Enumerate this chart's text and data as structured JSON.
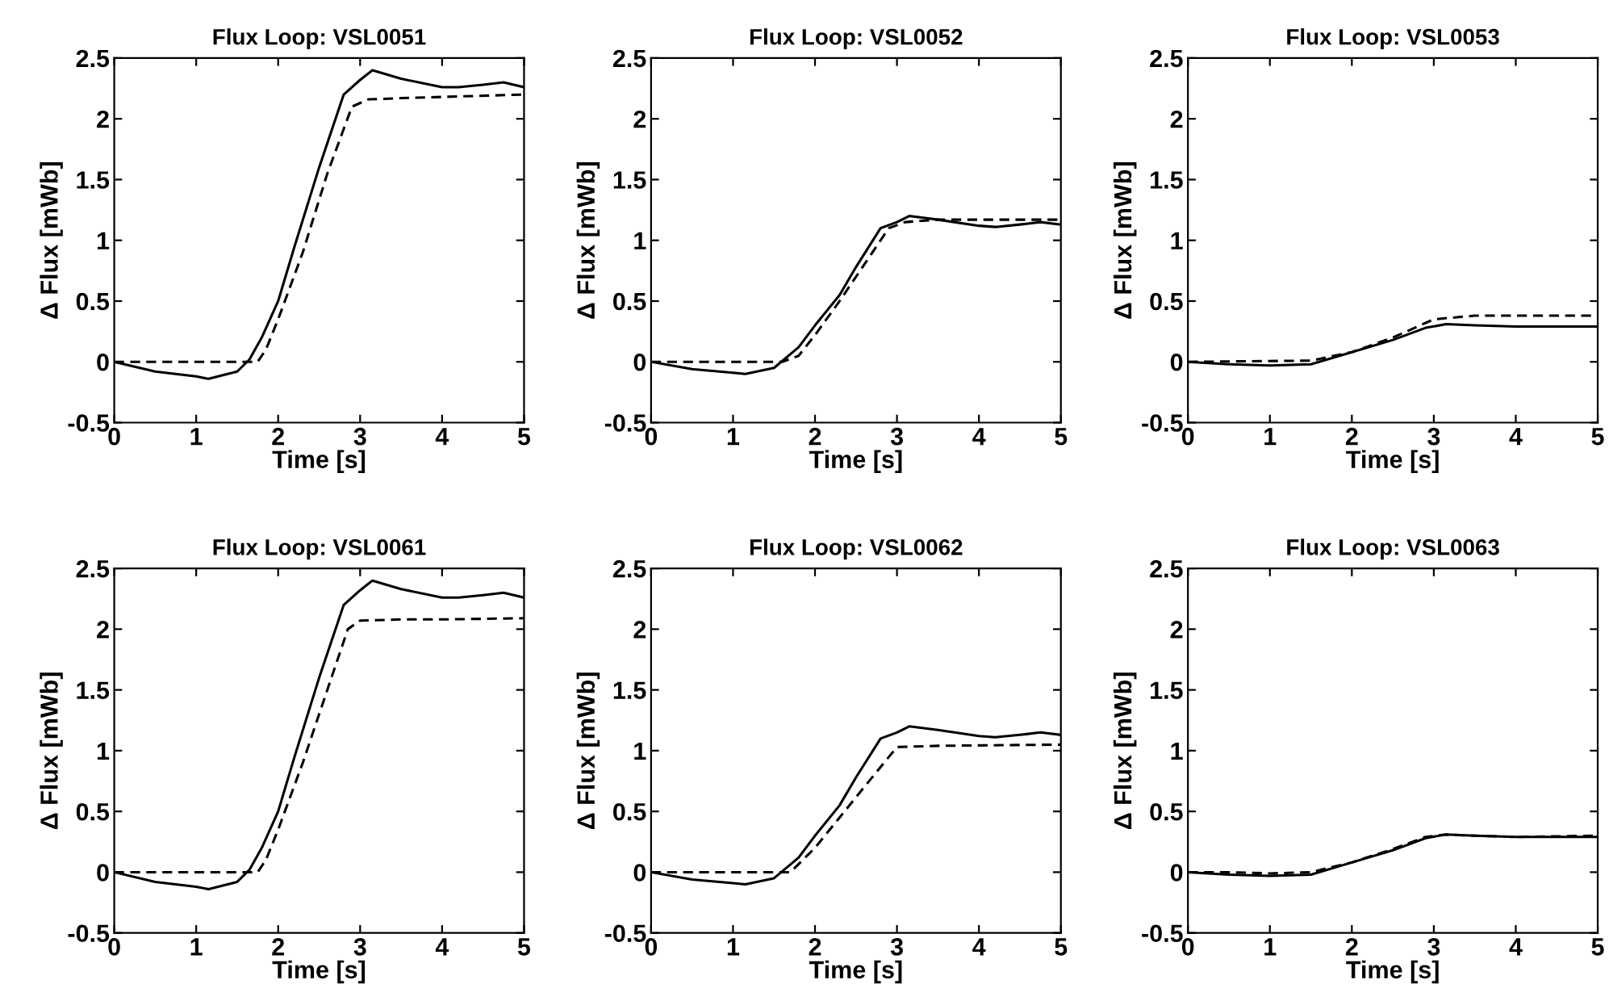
{
  "chart_data": [
    {
      "type": "line",
      "title": "Flux Loop: VSL0051",
      "xlabel": "Time [s]",
      "ylabel": "Δ Flux [mWb]",
      "xlim": [
        0,
        5
      ],
      "ylim": [
        -0.5,
        2.5
      ],
      "xticks": [
        0,
        1,
        2,
        3,
        4,
        5
      ],
      "yticks": [
        -0.5,
        0,
        0.5,
        1,
        1.5,
        2,
        2.5
      ],
      "series": [
        {
          "color": "#000000",
          "line_style": "solid",
          "x": [
            0,
            0.5,
            1,
            1.15,
            1.5,
            1.65,
            1.8,
            2,
            2.2,
            2.5,
            2.8,
            3,
            3.15,
            3.5,
            4,
            4.2,
            4.5,
            4.75,
            5
          ],
          "values": [
            0,
            -0.08,
            -0.12,
            -0.14,
            -0.08,
            0.02,
            0.2,
            0.5,
            0.95,
            1.6,
            2.2,
            2.32,
            2.4,
            2.33,
            2.26,
            2.26,
            2.28,
            2.3,
            2.26
          ]
        },
        {
          "color": "#000000",
          "line_style": "dashed",
          "x": [
            0,
            1.75,
            1.85,
            2,
            2.3,
            2.6,
            2.9,
            3.1,
            3.5,
            4,
            5
          ],
          "values": [
            0,
            0,
            0.1,
            0.35,
            0.9,
            1.55,
            2.1,
            2.16,
            2.17,
            2.18,
            2.2
          ]
        }
      ]
    },
    {
      "type": "line",
      "title": "Flux Loop: VSL0052",
      "xlabel": "Time [s]",
      "ylabel": "Δ Flux [mWb]",
      "xlim": [
        0,
        5
      ],
      "ylim": [
        -0.5,
        2.5
      ],
      "xticks": [
        0,
        1,
        2,
        3,
        4,
        5
      ],
      "yticks": [
        -0.5,
        0,
        0.5,
        1,
        1.5,
        2,
        2.5
      ],
      "series": [
        {
          "color": "#000000",
          "line_style": "solid",
          "x": [
            0,
            0.5,
            1,
            1.15,
            1.5,
            1.8,
            2,
            2.3,
            2.5,
            2.8,
            3,
            3.15,
            3.5,
            4,
            4.2,
            4.5,
            4.75,
            5
          ],
          "values": [
            0,
            -0.06,
            -0.09,
            -0.1,
            -0.05,
            0.12,
            0.3,
            0.55,
            0.78,
            1.1,
            1.15,
            1.2,
            1.17,
            1.12,
            1.11,
            1.13,
            1.15,
            1.13
          ]
        },
        {
          "color": "#000000",
          "line_style": "dashed",
          "x": [
            0,
            1.6,
            1.8,
            2,
            2.3,
            2.6,
            2.9,
            3.1,
            3.5,
            5
          ],
          "values": [
            0,
            0,
            0.05,
            0.22,
            0.5,
            0.8,
            1.1,
            1.15,
            1.17,
            1.17
          ]
        }
      ]
    },
    {
      "type": "line",
      "title": "Flux Loop: VSL0053",
      "xlabel": "Time [s]",
      "ylabel": "Δ Flux [mWb]",
      "xlim": [
        0,
        5
      ],
      "ylim": [
        -0.5,
        2.5
      ],
      "xticks": [
        0,
        1,
        2,
        3,
        4,
        5
      ],
      "yticks": [
        -0.5,
        0,
        0.5,
        1,
        1.5,
        2,
        2.5
      ],
      "series": [
        {
          "color": "#000000",
          "line_style": "solid",
          "x": [
            0,
            0.5,
            1,
            1.5,
            2,
            2.5,
            2.9,
            3.15,
            3.5,
            4,
            5
          ],
          "values": [
            0,
            -0.02,
            -0.03,
            -0.02,
            0.08,
            0.18,
            0.28,
            0.31,
            0.3,
            0.29,
            0.29
          ]
        },
        {
          "color": "#000000",
          "line_style": "dashed",
          "x": [
            0,
            1.5,
            2,
            2.5,
            3,
            3.5,
            5
          ],
          "values": [
            0,
            0.01,
            0.08,
            0.2,
            0.35,
            0.38,
            0.38
          ]
        }
      ]
    },
    {
      "type": "line",
      "title": "Flux Loop: VSL0061",
      "xlabel": "Time [s]",
      "ylabel": "Δ Flux [mWb]",
      "xlim": [
        0,
        5
      ],
      "ylim": [
        -0.5,
        2.5
      ],
      "xticks": [
        0,
        1,
        2,
        3,
        4,
        5
      ],
      "yticks": [
        -0.5,
        0,
        0.5,
        1,
        1.5,
        2,
        2.5
      ],
      "series": [
        {
          "color": "#000000",
          "line_style": "solid",
          "x": [
            0,
            0.5,
            1,
            1.15,
            1.5,
            1.65,
            1.8,
            2,
            2.2,
            2.5,
            2.8,
            3,
            3.15,
            3.5,
            4,
            4.2,
            4.5,
            4.75,
            5
          ],
          "values": [
            0,
            -0.08,
            -0.12,
            -0.14,
            -0.08,
            0.02,
            0.2,
            0.5,
            0.95,
            1.6,
            2.2,
            2.32,
            2.4,
            2.33,
            2.26,
            2.26,
            2.28,
            2.3,
            2.26
          ]
        },
        {
          "color": "#000000",
          "line_style": "dashed",
          "x": [
            0,
            1.75,
            1.85,
            2,
            2.3,
            2.6,
            2.85,
            3,
            3.5,
            4,
            5
          ],
          "values": [
            0,
            0,
            0.1,
            0.35,
            0.9,
            1.5,
            2.0,
            2.07,
            2.08,
            2.08,
            2.09
          ]
        }
      ]
    },
    {
      "type": "line",
      "title": "Flux Loop: VSL0062",
      "xlabel": "Time [s]",
      "ylabel": "Δ Flux [mWb]",
      "xlim": [
        0,
        5
      ],
      "ylim": [
        -0.5,
        2.5
      ],
      "xticks": [
        0,
        1,
        2,
        3,
        4,
        5
      ],
      "yticks": [
        -0.5,
        0,
        0.5,
        1,
        1.5,
        2,
        2.5
      ],
      "series": [
        {
          "color": "#000000",
          "line_style": "solid",
          "x": [
            0,
            0.5,
            1,
            1.15,
            1.5,
            1.8,
            2,
            2.3,
            2.5,
            2.8,
            3,
            3.15,
            3.5,
            4,
            4.2,
            4.5,
            4.75,
            5
          ],
          "values": [
            0,
            -0.06,
            -0.09,
            -0.1,
            -0.05,
            0.12,
            0.3,
            0.55,
            0.78,
            1.1,
            1.15,
            1.2,
            1.17,
            1.12,
            1.11,
            1.13,
            1.15,
            1.13
          ]
        },
        {
          "color": "#000000",
          "line_style": "dashed",
          "x": [
            0,
            1.7,
            2,
            2.3,
            2.6,
            3,
            3.5,
            5
          ],
          "values": [
            0,
            0,
            0.2,
            0.45,
            0.7,
            1.03,
            1.04,
            1.05
          ]
        }
      ]
    },
    {
      "type": "line",
      "title": "Flux Loop: VSL0063",
      "xlabel": "Time [s]",
      "ylabel": "Δ Flux [mWb]",
      "xlim": [
        0,
        5
      ],
      "ylim": [
        -0.5,
        2.5
      ],
      "xticks": [
        0,
        1,
        2,
        3,
        4,
        5
      ],
      "yticks": [
        -0.5,
        0,
        0.5,
        1,
        1.5,
        2,
        2.5
      ],
      "series": [
        {
          "color": "#000000",
          "line_style": "solid",
          "x": [
            0,
            0.5,
            1,
            1.5,
            2,
            2.5,
            2.9,
            3.15,
            3.5,
            4,
            5
          ],
          "values": [
            0,
            -0.02,
            -0.03,
            -0.02,
            0.08,
            0.18,
            0.28,
            0.31,
            0.3,
            0.29,
            0.29
          ]
        },
        {
          "color": "#000000",
          "line_style": "dashed",
          "x": [
            0,
            0.5,
            1,
            1.5,
            2,
            2.5,
            2.9,
            3.15,
            3.5,
            4,
            5
          ],
          "values": [
            0,
            0,
            -0.01,
            0,
            0.08,
            0.19,
            0.29,
            0.31,
            0.3,
            0.29,
            0.3
          ]
        }
      ]
    }
  ]
}
